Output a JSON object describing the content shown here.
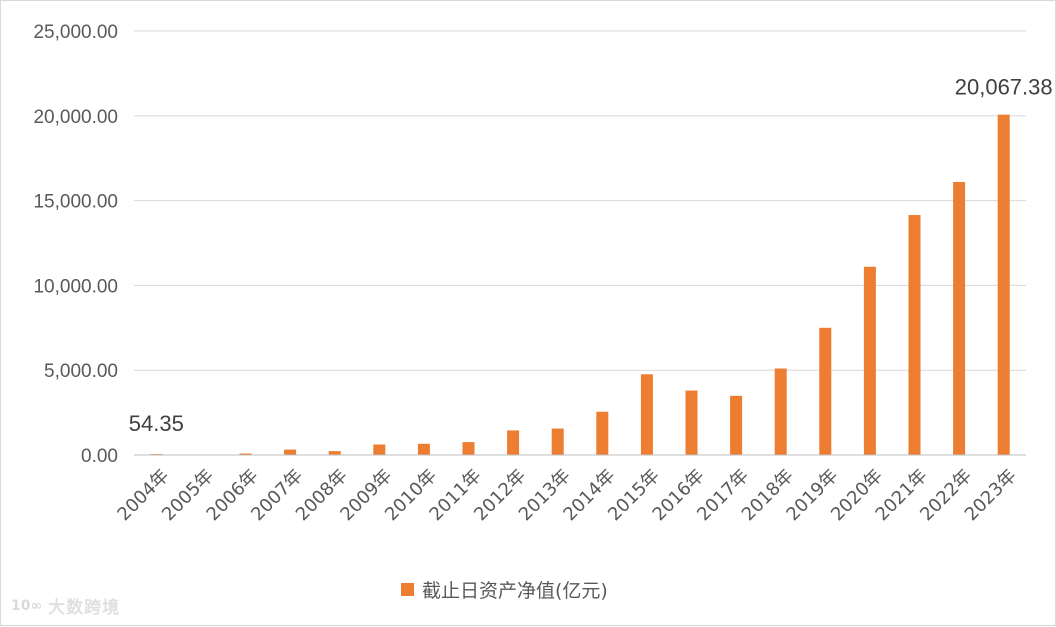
{
  "chart_data": {
    "type": "bar",
    "categories": [
      "2004年",
      "2005年",
      "2006年",
      "2007年",
      "2008年",
      "2009年",
      "2010年",
      "2011年",
      "2012年",
      "2013年",
      "2014年",
      "2015年",
      "2016年",
      "2017年",
      "2018年",
      "2019年",
      "2020年",
      "2021年",
      "2022年",
      "2023年"
    ],
    "series": [
      {
        "name": "截止日资产净值(亿元)",
        "values": [
          54.35,
          0,
          90,
          320,
          230,
          620,
          660,
          760,
          1450,
          1560,
          2550,
          4760,
          3800,
          3490,
          5100,
          7500,
          11100,
          14150,
          16100,
          20067.38
        ],
        "color": "#ED7D31"
      }
    ],
    "ylim": [
      0,
      25000
    ],
    "yticks": [
      "0.00",
      "5,000.00",
      "10,000.00",
      "15,000.00",
      "20,000.00",
      "25,000.00"
    ],
    "ytick_values": [
      0,
      5000,
      10000,
      15000,
      20000,
      25000
    ],
    "data_labels": [
      {
        "index": 0,
        "text": "54.35"
      },
      {
        "index": 19,
        "text": "20,067.38"
      }
    ],
    "grid": true,
    "legend_position": "bottom"
  },
  "legend": {
    "label": "截止日资产净值(亿元)"
  },
  "watermark": {
    "logo": "10∞",
    "text": "大数跨境"
  }
}
